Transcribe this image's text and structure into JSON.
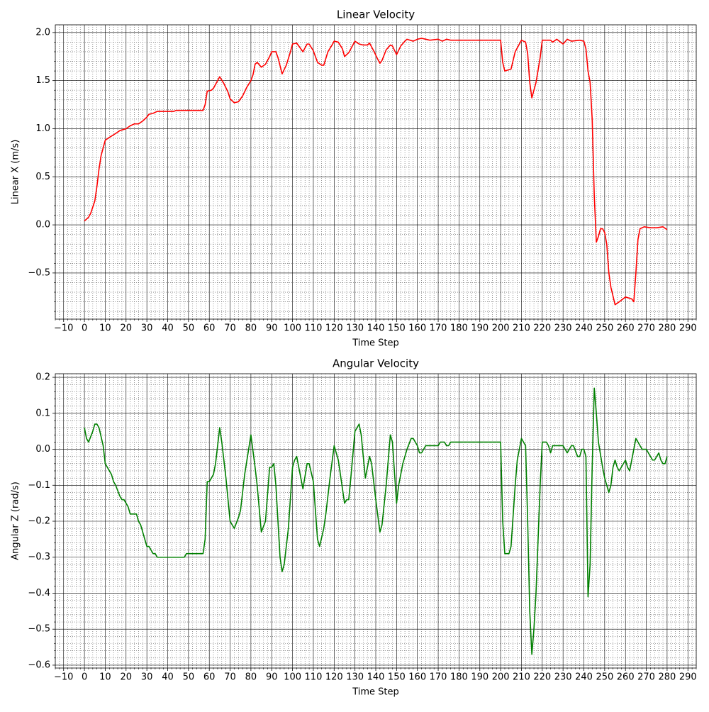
{
  "chart_data": [
    {
      "type": "line",
      "title": "Linear Velocity",
      "xlabel": "Time Step",
      "ylabel": "Linear X (m/s)",
      "color": "#ff0000",
      "grid": true,
      "minor_grid": true,
      "xlim": [
        -14,
        294
      ],
      "ylim": [
        -0.98,
        2.08
      ],
      "xticks": [
        {
          "value": -10,
          "label": "−10"
        },
        0,
        10,
        20,
        30,
        40,
        50,
        60,
        70,
        80,
        90,
        100,
        110,
        120,
        130,
        140,
        150,
        160,
        170,
        180,
        190,
        200,
        210,
        220,
        230,
        240,
        250,
        260,
        270,
        280,
        290
      ],
      "yticks": [
        {
          "value": -0.5,
          "label": "−0.5"
        },
        {
          "value": 0,
          "label": "0.0"
        },
        {
          "value": 0.5,
          "label": "0.5"
        },
        {
          "value": 1,
          "label": "1.0"
        },
        {
          "value": 1.5,
          "label": "1.5"
        },
        {
          "value": 2,
          "label": "2.0"
        }
      ],
      "x": [
        0,
        2,
        3,
        5,
        6,
        7,
        8,
        10,
        12,
        15,
        17,
        20,
        22,
        24,
        26,
        28,
        30,
        31,
        33,
        35,
        40,
        43,
        44,
        50,
        57,
        58,
        59,
        61,
        62,
        64,
        65,
        67,
        69,
        70,
        72,
        74,
        76,
        78,
        80,
        81,
        82,
        83,
        85,
        87,
        89,
        90,
        92,
        93,
        95,
        97,
        99,
        100,
        102,
        105,
        107,
        108,
        110,
        112,
        114,
        115,
        117,
        119,
        120,
        122,
        124,
        125,
        127,
        129,
        130,
        132,
        134,
        136,
        137,
        139,
        141,
        142,
        143,
        145,
        147,
        148,
        150,
        152,
        154,
        155,
        158,
        160,
        162,
        164,
        166,
        170,
        172,
        174,
        176,
        180,
        190,
        200,
        201,
        202,
        205,
        207,
        209,
        210,
        212,
        213,
        214,
        215,
        217,
        219,
        220,
        224,
        225,
        227,
        230,
        232,
        234,
        238,
        240,
        241,
        242,
        243,
        244,
        245,
        246,
        247,
        248,
        249,
        250,
        251,
        252,
        253,
        255,
        257,
        260,
        263,
        264,
        265,
        266,
        267,
        269,
        272,
        275,
        278,
        280
      ],
      "values": [
        0.04,
        0.08,
        0.12,
        0.25,
        0.4,
        0.58,
        0.72,
        0.88,
        0.91,
        0.95,
        0.98,
        1.0,
        1.03,
        1.05,
        1.05,
        1.08,
        1.12,
        1.15,
        1.16,
        1.18,
        1.18,
        1.18,
        1.19,
        1.19,
        1.19,
        1.25,
        1.39,
        1.4,
        1.42,
        1.5,
        1.54,
        1.47,
        1.38,
        1.31,
        1.27,
        1.28,
        1.34,
        1.43,
        1.5,
        1.56,
        1.67,
        1.69,
        1.64,
        1.67,
        1.75,
        1.8,
        1.8,
        1.74,
        1.57,
        1.66,
        1.8,
        1.88,
        1.89,
        1.8,
        1.88,
        1.88,
        1.81,
        1.69,
        1.66,
        1.66,
        1.8,
        1.87,
        1.91,
        1.9,
        1.83,
        1.75,
        1.79,
        1.87,
        1.91,
        1.88,
        1.87,
        1.87,
        1.89,
        1.81,
        1.72,
        1.68,
        1.71,
        1.82,
        1.87,
        1.86,
        1.77,
        1.86,
        1.91,
        1.93,
        1.91,
        1.93,
        1.94,
        1.93,
        1.92,
        1.93,
        1.91,
        1.93,
        1.92,
        1.92,
        1.92,
        1.92,
        1.69,
        1.6,
        1.62,
        1.8,
        1.88,
        1.92,
        1.9,
        1.78,
        1.48,
        1.32,
        1.48,
        1.74,
        1.92,
        1.92,
        1.9,
        1.93,
        1.88,
        1.93,
        1.91,
        1.92,
        1.91,
        1.83,
        1.6,
        1.48,
        1.1,
        0.3,
        -0.18,
        -0.12,
        -0.04,
        -0.04,
        -0.08,
        -0.2,
        -0.5,
        -0.65,
        -0.83,
        -0.8,
        -0.75,
        -0.77,
        -0.8,
        -0.5,
        -0.15,
        -0.04,
        -0.02,
        -0.03,
        -0.03,
        -0.02,
        -0.05
      ]
    },
    {
      "type": "line",
      "title": "Angular Velocity",
      "xlabel": "Time Step",
      "ylabel": "Angular Z (rad/s)",
      "color": "#008000",
      "grid": true,
      "minor_grid": true,
      "xlim": [
        -14,
        294
      ],
      "ylim": [
        -0.608,
        0.21
      ],
      "xticks": [
        {
          "value": -10,
          "label": "−10"
        },
        0,
        10,
        20,
        30,
        40,
        50,
        60,
        70,
        80,
        90,
        100,
        110,
        120,
        130,
        140,
        150,
        160,
        170,
        180,
        190,
        200,
        210,
        220,
        230,
        240,
        250,
        260,
        270,
        280,
        290
      ],
      "yticks": [
        {
          "value": -0.6,
          "label": "−0.6"
        },
        {
          "value": -0.5,
          "label": "−0.5"
        },
        {
          "value": -0.4,
          "label": "−0.4"
        },
        {
          "value": -0.3,
          "label": "−0.3"
        },
        {
          "value": -0.2,
          "label": "−0.2"
        },
        {
          "value": -0.1,
          "label": "−0.1"
        },
        {
          "value": 0,
          "label": "0.0"
        },
        {
          "value": 0.1,
          "label": "0.1"
        },
        {
          "value": 0.2,
          "label": "0.2"
        }
      ],
      "x": [
        0,
        1,
        2,
        4,
        5,
        6,
        7,
        9,
        10,
        12,
        13,
        14,
        15,
        17,
        18,
        19,
        21,
        22,
        25,
        26,
        27,
        30,
        31,
        32,
        33,
        34,
        35,
        48,
        49,
        57,
        58,
        59,
        60,
        62,
        63,
        65,
        66,
        68,
        70,
        72,
        74,
        75,
        77,
        80,
        82,
        83,
        85,
        87,
        89,
        90,
        91,
        92,
        94,
        95,
        96,
        98,
        100,
        101,
        102,
        104,
        105,
        107,
        108,
        110,
        112,
        113,
        115,
        116,
        118,
        120,
        122,
        125,
        126,
        127,
        128,
        130,
        132,
        133,
        135,
        137,
        138,
        140,
        142,
        143,
        145,
        147,
        148,
        150,
        151,
        153,
        155,
        157,
        158,
        160,
        161,
        162,
        164,
        170,
        171,
        173,
        174,
        175,
        176,
        200,
        201,
        202,
        204,
        205,
        207,
        208,
        210,
        212,
        213,
        214,
        215,
        216,
        217,
        218,
        219,
        220,
        222,
        223,
        224,
        225,
        230,
        232,
        234,
        235,
        237,
        238,
        239,
        240,
        241,
        242,
        243,
        244,
        245,
        246,
        247,
        249,
        250,
        251,
        252,
        253,
        254,
        255,
        256,
        257,
        258,
        260,
        261,
        262,
        263,
        265,
        266,
        268,
        270,
        271,
        273,
        274,
        276,
        277,
        278,
        279,
        280
      ],
      "values": [
        0.06,
        0.03,
        0.02,
        0.05,
        0.07,
        0.07,
        0.06,
        0.01,
        -0.04,
        -0.06,
        -0.07,
        -0.09,
        -0.1,
        -0.13,
        -0.14,
        -0.14,
        -0.16,
        -0.18,
        -0.18,
        -0.2,
        -0.21,
        -0.27,
        -0.27,
        -0.28,
        -0.29,
        -0.29,
        -0.3,
        -0.3,
        -0.29,
        -0.29,
        -0.25,
        -0.09,
        -0.09,
        -0.07,
        -0.04,
        0.06,
        0.02,
        -0.08,
        -0.2,
        -0.22,
        -0.19,
        -0.17,
        -0.07,
        0.04,
        -0.05,
        -0.1,
        -0.23,
        -0.2,
        -0.05,
        -0.05,
        -0.04,
        -0.1,
        -0.3,
        -0.34,
        -0.32,
        -0.22,
        -0.05,
        -0.03,
        -0.02,
        -0.08,
        -0.11,
        -0.04,
        -0.04,
        -0.09,
        -0.25,
        -0.27,
        -0.22,
        -0.18,
        -0.08,
        0.01,
        -0.03,
        -0.15,
        -0.14,
        -0.14,
        -0.08,
        0.05,
        0.07,
        0.04,
        -0.08,
        -0.02,
        -0.04,
        -0.14,
        -0.23,
        -0.21,
        -0.1,
        0.04,
        0.02,
        -0.15,
        -0.1,
        -0.04,
        0.0,
        0.03,
        0.03,
        0.01,
        -0.01,
        -0.01,
        0.01,
        0.01,
        0.02,
        0.02,
        0.01,
        0.01,
        0.02,
        0.02,
        -0.2,
        -0.29,
        -0.29,
        -0.27,
        -0.1,
        -0.03,
        0.03,
        0.01,
        -0.2,
        -0.45,
        -0.57,
        -0.5,
        -0.4,
        -0.25,
        -0.1,
        0.02,
        0.02,
        0.01,
        -0.01,
        0.01,
        0.01,
        -0.01,
        0.01,
        0.01,
        -0.02,
        -0.02,
        0.0,
        0.0,
        -0.02,
        -0.41,
        -0.32,
        -0.05,
        0.17,
        0.1,
        0.02,
        -0.05,
        -0.08,
        -0.1,
        -0.12,
        -0.1,
        -0.05,
        -0.03,
        -0.05,
        -0.06,
        -0.05,
        -0.03,
        -0.05,
        -0.06,
        -0.03,
        0.03,
        0.02,
        0.0,
        0.0,
        -0.01,
        -0.03,
        -0.03,
        -0.01,
        -0.03,
        -0.04,
        -0.04,
        -0.02
      ]
    }
  ]
}
